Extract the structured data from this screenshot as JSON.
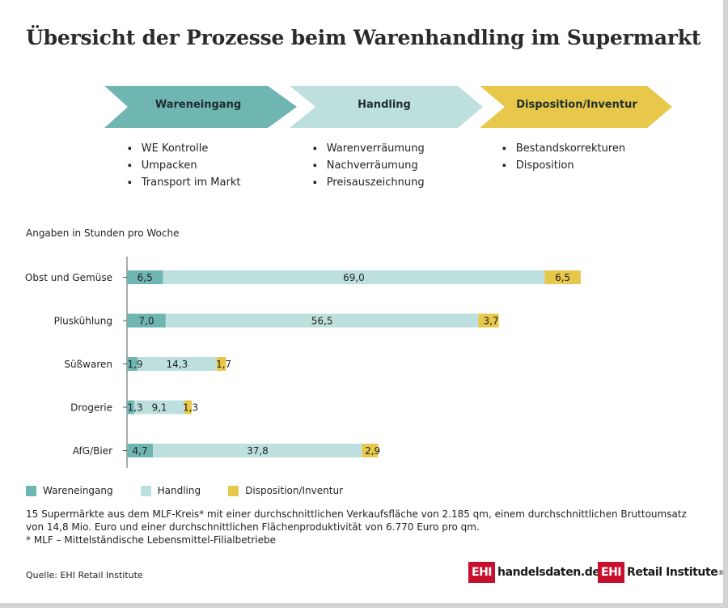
{
  "title": "Übersicht der Prozesse beim Warenhandling im Supermarkt",
  "stages": [
    {
      "label": "Wareneingang",
      "color": "#6fb5b2",
      "items": [
        "WE Kontrolle",
        "Umpacken",
        "Transport im Markt"
      ]
    },
    {
      "label": "Handling",
      "color": "#bde0df",
      "items": [
        "Warenverräumung",
        "Nachverräumung",
        "Preisauszeichnung"
      ]
    },
    {
      "label": "Disposition/Inventur",
      "color": "#e8c84a",
      "items": [
        "Bestandskorrekturen",
        "Disposition"
      ]
    }
  ],
  "unit_label": "Angaben in Stunden pro Woche",
  "chart_data": {
    "type": "bar",
    "orientation": "horizontal",
    "stacked": true,
    "categories": [
      "Obst und Gemüse",
      "Pluskühlung",
      "Süßwaren",
      "Drogerie",
      "AfG/Bier"
    ],
    "series": [
      {
        "name": "Wareneingang",
        "color": "#6fb5b2",
        "values": [
          6.5,
          7.0,
          1.9,
          1.3,
          4.7
        ],
        "labels": [
          "6,5",
          "7,0",
          "1,9",
          "1,3",
          "4,7"
        ]
      },
      {
        "name": "Handling",
        "color": "#bde0df",
        "values": [
          69.0,
          56.5,
          14.3,
          9.1,
          37.8
        ],
        "labels": [
          "69,0",
          "56,5",
          "14,3",
          "9,1",
          "37,8"
        ]
      },
      {
        "name": "Disposition/Inventur",
        "color": "#e8c84a",
        "values": [
          6.5,
          3.7,
          1.7,
          1.3,
          2.9
        ],
        "labels": [
          "6,5",
          "3,7",
          "1,7",
          "1,3",
          "2,9"
        ]
      }
    ],
    "legend_position": "bottom-left",
    "grid": false
  },
  "note_lines": [
    "15 Supermärkte aus dem MLF-Kreis* mit einer durchschnittlichen Verkaufsfläche von 2.185 qm, einem durchschnittlichen Bruttoumsatz von 14,8 Mio. Euro und einer durchschnittlichen Flächenproduktivität von 6.770 Euro pro qm.",
    "*   MLF – Mittelständische Lebensmittel-Filialbetriebe"
  ],
  "source": "Quelle: EHI Retail Institute",
  "logos": {
    "ehi": "EHI",
    "handelsdaten": "handelsdaten.de",
    "retail": "Retail Institute",
    "registered": "®"
  }
}
